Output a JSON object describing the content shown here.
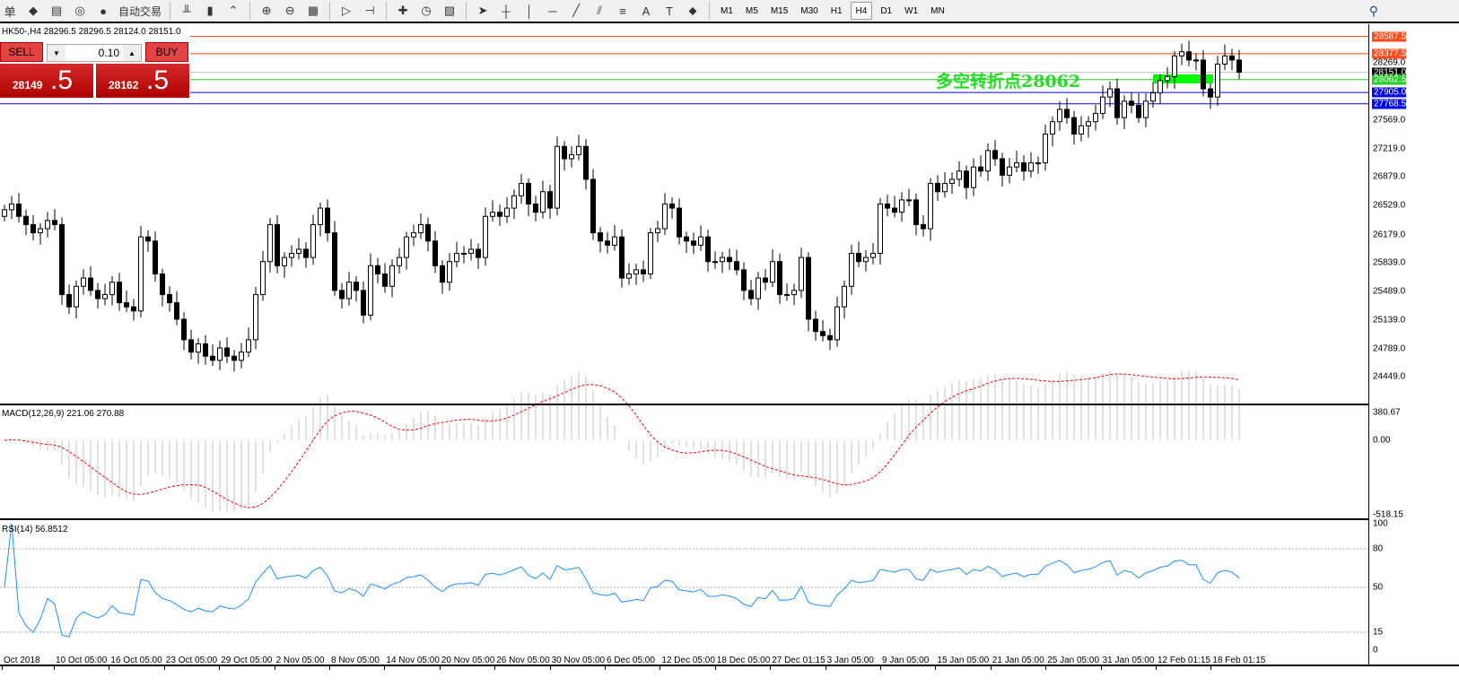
{
  "toolbar": {
    "items": [
      {
        "name": "orders-icon",
        "glyph": "单"
      },
      {
        "name": "market-watch-icon",
        "glyph": "◆"
      },
      {
        "name": "navigator-icon",
        "glyph": "▤"
      },
      {
        "name": "signals-icon",
        "glyph": "◎"
      },
      {
        "name": "auto-trading-icon",
        "glyph": "●"
      }
    ],
    "auto_trading_label": "自动交易",
    "chart_tools": [
      {
        "name": "bar-chart-icon",
        "glyph": "╨"
      },
      {
        "name": "candlestick-icon",
        "glyph": "▮"
      },
      {
        "name": "line-chart-icon",
        "glyph": "⌃"
      },
      {
        "name": "zoom-in-icon",
        "glyph": "⊕"
      },
      {
        "name": "zoom-out-icon",
        "glyph": "⊖"
      },
      {
        "name": "tile-windows-icon",
        "glyph": "▦"
      },
      {
        "name": "auto-scroll-icon",
        "glyph": "▷"
      },
      {
        "name": "chart-shift-icon",
        "glyph": "⊣"
      },
      {
        "name": "new-indicator-icon",
        "glyph": "✚"
      },
      {
        "name": "periods-icon",
        "glyph": "◷"
      },
      {
        "name": "templates-icon",
        "glyph": "▧"
      }
    ],
    "draw_tools": [
      {
        "name": "cursor-icon",
        "glyph": "➤"
      },
      {
        "name": "crosshair-icon",
        "glyph": "┼"
      },
      {
        "name": "vertical-line-icon",
        "glyph": "│"
      },
      {
        "name": "horizontal-line-icon",
        "glyph": "─"
      },
      {
        "name": "trendline-icon",
        "glyph": "╱"
      },
      {
        "name": "equidistant-channel-icon",
        "glyph": "⫽"
      },
      {
        "name": "fibonacci-icon",
        "glyph": "≡"
      },
      {
        "name": "text-icon",
        "glyph": "A"
      },
      {
        "name": "text-label-icon",
        "glyph": "T"
      },
      {
        "name": "arrows-icon",
        "glyph": "⬥"
      }
    ],
    "periods": [
      "M1",
      "M5",
      "M15",
      "M30",
      "H1",
      "H4",
      "D1",
      "W1",
      "MN"
    ],
    "active_period": "H4",
    "search_glyph": "⚲"
  },
  "chart": {
    "header": "HK50-,H4  28296.5 28296.5 28124.0 28151.0",
    "annotation": "多空转折点28062",
    "colors": {
      "resistance": "#ff4a1a",
      "support": "#0000ee",
      "pivot": "#22cc22",
      "current": "#c0c0c0",
      "zone": "#00ff00",
      "signal": "#ff0000",
      "rsi": "#1e90ff",
      "histogram": "#c0c0c0"
    }
  },
  "trade_panel": {
    "sell_label": "SELL",
    "buy_label": "BUY",
    "lot": "0.10",
    "sell_price_main": "28149",
    "sell_price_frac": ".5",
    "buy_price_main": "28162",
    "buy_price_frac": ".5",
    "down_arrow": "▼",
    "up_arrow": "▲"
  },
  "chart_data": {
    "type": "candlestick",
    "symbol": "HK50-",
    "timeframe": "H4",
    "price_axis_labels": [
      "28269.0",
      "27569.0",
      "27219.0",
      "26879.0",
      "26529.0",
      "26179.0",
      "25839.0",
      "25489.0",
      "25139.0",
      "24789.0",
      "24449.0"
    ],
    "levels": [
      {
        "price": 28587.5,
        "label": "28587.5",
        "kind": "resistance"
      },
      {
        "price": 28377.5,
        "label": "28377.5",
        "kind": "resistance"
      },
      {
        "price": 28151.0,
        "label": "28151.0",
        "kind": "current"
      },
      {
        "price": 28062.5,
        "label": "28062.5",
        "kind": "pivot"
      },
      {
        "price": 27905.0,
        "label": "27905.0",
        "kind": "support"
      },
      {
        "price": 27768.5,
        "label": "27768.5",
        "kind": "support"
      }
    ],
    "open_first": 26400,
    "closes": [
      26480,
      26550,
      26400,
      26300,
      26200,
      26250,
      26350,
      26300,
      25450,
      25300,
      25550,
      25650,
      25500,
      25400,
      25450,
      25600,
      25350,
      25300,
      25250,
      26150,
      26100,
      25700,
      25450,
      25350,
      25150,
      24900,
      24750,
      24850,
      24700,
      24650,
      24800,
      24700,
      24650,
      24750,
      24900,
      25450,
      25850,
      26300,
      25800,
      25900,
      25950,
      26000,
      25900,
      26300,
      26500,
      26200,
      25500,
      25400,
      25600,
      25500,
      25200,
      25800,
      25700,
      25550,
      25800,
      25900,
      26150,
      26200,
      26300,
      26100,
      25800,
      25600,
      25850,
      25950,
      25950,
      26000,
      25900,
      26400,
      26450,
      26400,
      26500,
      26650,
      26800,
      26550,
      26450,
      26700,
      26500,
      27250,
      27100,
      27150,
      27250,
      26850,
      26200,
      26100,
      26050,
      26150,
      25650,
      25700,
      25750,
      25700,
      26200,
      26250,
      26550,
      26500,
      26150,
      26100,
      26050,
      26150,
      25850,
      25850,
      25900,
      25850,
      25750,
      25500,
      25400,
      25650,
      25600,
      25850,
      25450,
      25450,
      25500,
      25900,
      25150,
      25000,
      24950,
      24900,
      25300,
      25550,
      25950,
      25850,
      25900,
      25950,
      26550,
      26500,
      26450,
      26600,
      26600,
      26300,
      26250,
      26800,
      26700,
      26800,
      26850,
      26950,
      26750,
      27000,
      26950,
      27200,
      27100,
      26900,
      27000,
      27050,
      26950,
      27050,
      27050,
      27400,
      27550,
      27700,
      27600,
      27400,
      27500,
      27550,
      27650,
      27850,
      27950,
      27600,
      27800,
      27750,
      27600,
      27800,
      27900,
      28050,
      28100,
      28350,
      28400,
      28300,
      28300,
      27950,
      27850,
      28250,
      28350,
      28300,
      28151
    ],
    "time_labels": [
      "Oct 2018",
      "10 Oct 05:00",
      "16 Oct 05:00",
      "23 Oct 05:00",
      "29 Oct 05:00",
      "2 Nov 05:00",
      "8 Nov 05:00",
      "14 Nov 05:00",
      "20 Nov 05:00",
      "26 Nov 05:00",
      "30 Nov 05:00",
      "6 Dec 05:00",
      "12 Dec 05:00",
      "18 Dec 05:00",
      "27 Dec 01:15",
      "3 Jan 05:00",
      "9 Jan 05:00",
      "15 Jan 05:00",
      "21 Jan 05:00",
      "25 Jan 05:00",
      "31 Jan 05:00",
      "12 Feb 01:15",
      "18 Feb 01:15"
    ],
    "macd": {
      "label": "MACD(12,26,9) 221.06 270.88",
      "axis": [
        "380.67",
        "0.00",
        "-518.15"
      ]
    },
    "rsi": {
      "label": "RSI(14) 56.8512",
      "axis": [
        "100",
        "80",
        "50",
        "15",
        "0"
      ],
      "levels": [
        80,
        50,
        15
      ]
    }
  }
}
